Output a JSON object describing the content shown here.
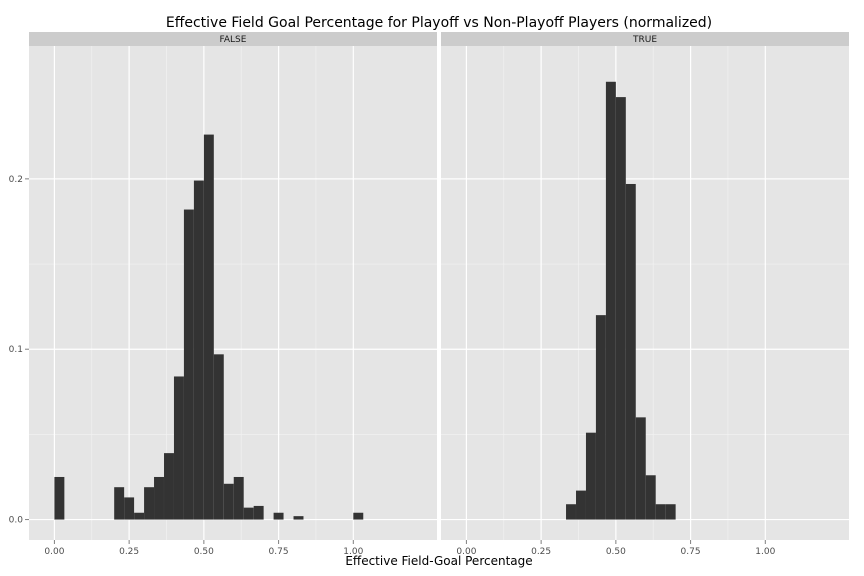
{
  "chart_data": {
    "type": "bar",
    "title": "Effective Field Goal Percentage for Playoff vs Non-Playoff Players (normalized)",
    "xlabel": "Effective Field-Goal Percentage",
    "ylabel": "",
    "xlim": [
      -0.085,
      1.28
    ],
    "ylim": [
      -0.012,
      0.278
    ],
    "x_ticks": [
      0,
      0.25,
      0.5,
      0.75,
      1
    ],
    "x_tick_labels": [
      "0.00",
      "0.25",
      "0.50",
      "0.75",
      "1.00"
    ],
    "y_ticks": [
      0,
      0.1,
      0.2
    ],
    "y_tick_labels": [
      "0.0",
      "0.1",
      "0.2"
    ],
    "bin_width": 0.0333,
    "grid": true,
    "facets": [
      {
        "label": "FALSE",
        "bins": [
          {
            "x": 0.0,
            "y": 0.025
          },
          {
            "x": 0.2,
            "y": 0.019
          },
          {
            "x": 0.2333,
            "y": 0.013
          },
          {
            "x": 0.2667,
            "y": 0.004
          },
          {
            "x": 0.3,
            "y": 0.019
          },
          {
            "x": 0.3333,
            "y": 0.025
          },
          {
            "x": 0.3667,
            "y": 0.039
          },
          {
            "x": 0.4,
            "y": 0.084
          },
          {
            "x": 0.4333,
            "y": 0.182
          },
          {
            "x": 0.4667,
            "y": 0.199
          },
          {
            "x": 0.5,
            "y": 0.226
          },
          {
            "x": 0.5333,
            "y": 0.097
          },
          {
            "x": 0.5667,
            "y": 0.021
          },
          {
            "x": 0.6,
            "y": 0.025
          },
          {
            "x": 0.6333,
            "y": 0.007
          },
          {
            "x": 0.6667,
            "y": 0.008
          },
          {
            "x": 0.7333,
            "y": 0.004
          },
          {
            "x": 0.8,
            "y": 0.002
          },
          {
            "x": 1.0,
            "y": 0.004
          }
        ]
      },
      {
        "label": "TRUE",
        "bins": [
          {
            "x": 0.3333,
            "y": 0.009
          },
          {
            "x": 0.3667,
            "y": 0.017
          },
          {
            "x": 0.4,
            "y": 0.051
          },
          {
            "x": 0.4333,
            "y": 0.12
          },
          {
            "x": 0.4667,
            "y": 0.257
          },
          {
            "x": 0.5,
            "y": 0.248
          },
          {
            "x": 0.5333,
            "y": 0.197
          },
          {
            "x": 0.5667,
            "y": 0.06
          },
          {
            "x": 0.6,
            "y": 0.026
          },
          {
            "x": 0.6333,
            "y": 0.009
          },
          {
            "x": 0.6667,
            "y": 0.009
          }
        ]
      }
    ],
    "colors": {
      "panel_bg": "#e5e5e5",
      "strip_bg": "#cccccc",
      "grid_major": "#ffffff",
      "grid_minor": "#f2f2f2",
      "bar": "#333333"
    }
  }
}
